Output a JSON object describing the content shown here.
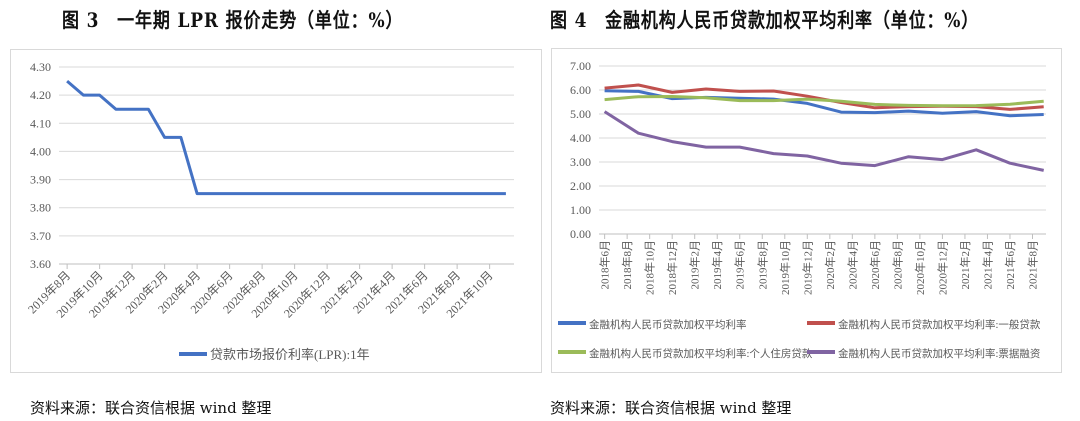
{
  "figures": [
    {
      "title": "图 3　一年期 LPR 报价走势（单位：%）",
      "source": "资料来源：联合资信根据 wind 整理"
    },
    {
      "title": "图 4　金融机构人民币贷款加权平均利率（单位：%）",
      "source": "资料来源：联合资信根据 wind 整理"
    }
  ],
  "chart_data": [
    {
      "type": "line",
      "title": "图 3　一年期 LPR 报价走势（单位：%）",
      "ylim": [
        3.6,
        4.3
      ],
      "yticks": [
        "3.60",
        "3.70",
        "3.80",
        "3.90",
        "4.00",
        "4.10",
        "4.20",
        "4.30"
      ],
      "xtick_labels": [
        "2019年8月",
        "2019年10月",
        "2019年12月",
        "2020年2月",
        "2020年4月",
        "2020年6月",
        "2020年8月",
        "2020年10月",
        "2020年12月",
        "2021年2月",
        "2021年4月",
        "2021年6月",
        "2021年8月",
        "2021年10月"
      ],
      "x": [
        "2019-08",
        "2019-09",
        "2019-10",
        "2019-11",
        "2019-12",
        "2020-01",
        "2020-02",
        "2020-03",
        "2020-04",
        "2020-05",
        "2020-06",
        "2020-07",
        "2020-08",
        "2020-09",
        "2020-10",
        "2020-11",
        "2020-12",
        "2021-01",
        "2021-02",
        "2021-03",
        "2021-04",
        "2021-05",
        "2021-06",
        "2021-07",
        "2021-08",
        "2021-09",
        "2021-10",
        "2021-11"
      ],
      "grid": true,
      "legend": "bottom",
      "series": [
        {
          "name": "贷款市场报价利率(LPR):1年",
          "color": "#4472C4",
          "values": [
            4.25,
            4.2,
            4.2,
            4.15,
            4.15,
            4.15,
            4.05,
            4.05,
            3.85,
            3.85,
            3.85,
            3.85,
            3.85,
            3.85,
            3.85,
            3.85,
            3.85,
            3.85,
            3.85,
            3.85,
            3.85,
            3.85,
            3.85,
            3.85,
            3.85,
            3.85,
            3.85,
            3.85
          ]
        }
      ]
    },
    {
      "type": "line",
      "title": "图 4　金融机构人民币贷款加权平均利率（单位：%）",
      "ylim": [
        0,
        7
      ],
      "yticks": [
        "0.00",
        "1.00",
        "2.00",
        "3.00",
        "4.00",
        "5.00",
        "6.00",
        "7.00"
      ],
      "xtick_labels": [
        "2018年6月",
        "2018年8月",
        "2018年10月",
        "2018年12月",
        "2019年2月",
        "2019年4月",
        "2019年6月",
        "2019年8月",
        "2019年10月",
        "2019年12月",
        "2020年2月",
        "2020年4月",
        "2020年6月",
        "2020年8月",
        "2020年10月",
        "2020年12月",
        "2021年2月",
        "2021年4月",
        "2021年6月",
        "2021年8月"
      ],
      "x": [
        "2018-06",
        "2018-09",
        "2018-12",
        "2019-03",
        "2019-06",
        "2019-09",
        "2019-12",
        "2020-03",
        "2020-06",
        "2020-09",
        "2020-12",
        "2021-03",
        "2021-06",
        "2021-09"
      ],
      "grid": true,
      "legend": "bottom",
      "series": [
        {
          "name": "金融机构人民币贷款加权平均利率",
          "color": "#4472C4",
          "values": [
            5.97,
            5.94,
            5.64,
            5.69,
            5.66,
            5.62,
            5.44,
            5.08,
            5.06,
            5.12,
            5.03,
            5.1,
            4.93,
            4.98
          ]
        },
        {
          "name": "金融机构人民币贷款加权平均利率:一般贷款",
          "color": "#C0504D",
          "values": [
            6.08,
            6.21,
            5.9,
            6.04,
            5.94,
            5.96,
            5.74,
            5.48,
            5.26,
            5.31,
            5.32,
            5.31,
            5.19,
            5.3
          ]
        },
        {
          "name": "金融机构人民币贷款加权平均利率:个人住房贷款",
          "color": "#9BBB59",
          "values": [
            5.6,
            5.72,
            5.73,
            5.68,
            5.56,
            5.56,
            5.62,
            5.53,
            5.4,
            5.36,
            5.34,
            5.35,
            5.41,
            5.53
          ]
        },
        {
          "name": "金融机构人民币贷款加权平均利率:票据融资",
          "color": "#8064A2",
          "values": [
            5.1,
            4.2,
            3.85,
            3.62,
            3.62,
            3.35,
            3.25,
            2.95,
            2.85,
            3.22,
            3.1,
            3.51,
            2.95,
            2.65
          ]
        }
      ]
    }
  ]
}
